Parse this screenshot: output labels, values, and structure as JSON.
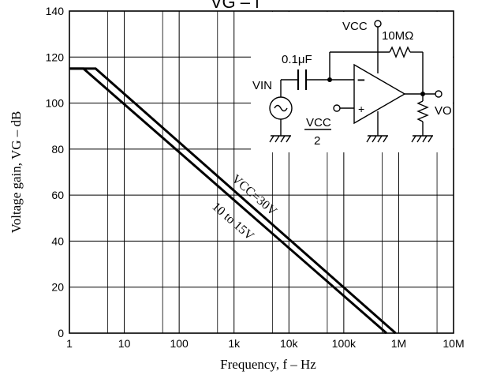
{
  "chart_data": {
    "type": "line",
    "title": "VG – f",
    "xlabel": "Frequency,  f  –  Hz",
    "ylabel": "Voltage gain,  VG  –  dB",
    "xscale": "log",
    "xlim": [
      1,
      10000000
    ],
    "ylim": [
      0,
      140
    ],
    "grid": true,
    "x_ticks": [
      {
        "value": 1,
        "label": "1"
      },
      {
        "value": 10,
        "label": "10"
      },
      {
        "value": 100,
        "label": "100"
      },
      {
        "value": 1000,
        "label": "1k"
      },
      {
        "value": 10000,
        "label": "10k"
      },
      {
        "value": 100000,
        "label": "100k"
      },
      {
        "value": 1000000,
        "label": "1M"
      },
      {
        "value": 10000000,
        "label": "10M"
      }
    ],
    "y_ticks": [
      0,
      20,
      40,
      60,
      80,
      100,
      120,
      140
    ],
    "series": [
      {
        "name": "VCC=30V",
        "x": [
          1,
          3,
          880000
        ],
        "y": [
          115,
          115,
          0
        ]
      },
      {
        "name": "10 to 15V",
        "x": [
          1,
          1.8,
          600000
        ],
        "y": [
          115,
          115,
          0
        ]
      }
    ],
    "annotations": {
      "series_label_1": "VCC=30V",
      "series_label_2": "10 to 15V"
    }
  },
  "circuit": {
    "vcc_top": "VCC",
    "resistor_feedback": "10MΩ",
    "capacitor": "0.1μF",
    "vin": "VIN",
    "minus": "−",
    "plus": "+",
    "vcc_half_num": "VCC",
    "vcc_half_den": "2",
    "vo": "VO"
  }
}
